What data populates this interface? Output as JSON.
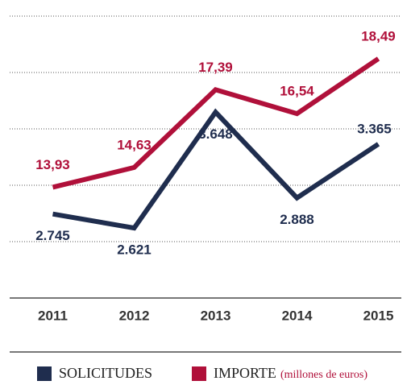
{
  "chart_data": {
    "type": "line",
    "categories": [
      "2011",
      "2012",
      "2013",
      "2014",
      "2015"
    ],
    "ylim": [
      2000,
      4500
    ],
    "y2lim": [
      10,
      20
    ],
    "series": [
      {
        "name": "SOLICITUDES",
        "color": "#1f2d4e",
        "values": [
          2745,
          2621,
          3648,
          2888,
          3365
        ],
        "value_labels": [
          "2.745",
          "2.621",
          "3.648",
          "2.888",
          "3.365"
        ]
      },
      {
        "name": "IMPORTE",
        "unit": "(millones de euros)",
        "color": "#b0103a",
        "axis": "y2",
        "values": [
          13.93,
          14.63,
          17.39,
          16.54,
          18.49
        ],
        "value_labels": [
          "13,93",
          "14,63",
          "17,39",
          "16,54",
          "18,49"
        ]
      }
    ]
  }
}
